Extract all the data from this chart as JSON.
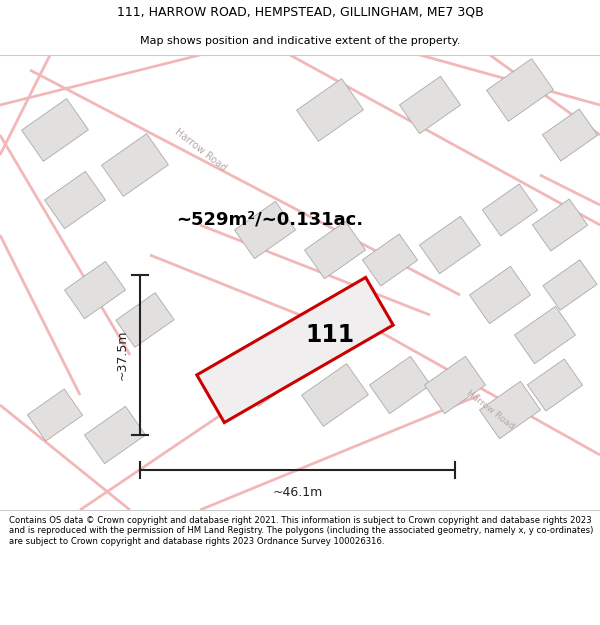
{
  "title_line1": "111, HARROW ROAD, HEMPSTEAD, GILLINGHAM, ME7 3QB",
  "title_line2": "Map shows position and indicative extent of the property.",
  "footer": "Contains OS data © Crown copyright and database right 2021. This information is subject to Crown copyright and database rights 2023 and is reproduced with the permission of HM Land Registry. The polygons (including the associated geometry, namely x, y co-ordinates) are subject to Crown copyright and database rights 2023 Ordnance Survey 100026316.",
  "area_label": "~529m²/~0.131ac.",
  "number_label": "111",
  "width_label": "~46.1m",
  "height_label": "~37.5m",
  "map_bg": "#faf8f8",
  "plot_color": "#f0eeee",
  "plot_edge_color": "#cc0000",
  "building_fill": "#e2dfdf",
  "building_edge": "#aaaaaa",
  "road_color": "#f2b8b8",
  "road_label_color": "#b8a8a8",
  "dim_color": "#222222",
  "figsize": [
    6.0,
    6.25
  ],
  "dpi": 100
}
